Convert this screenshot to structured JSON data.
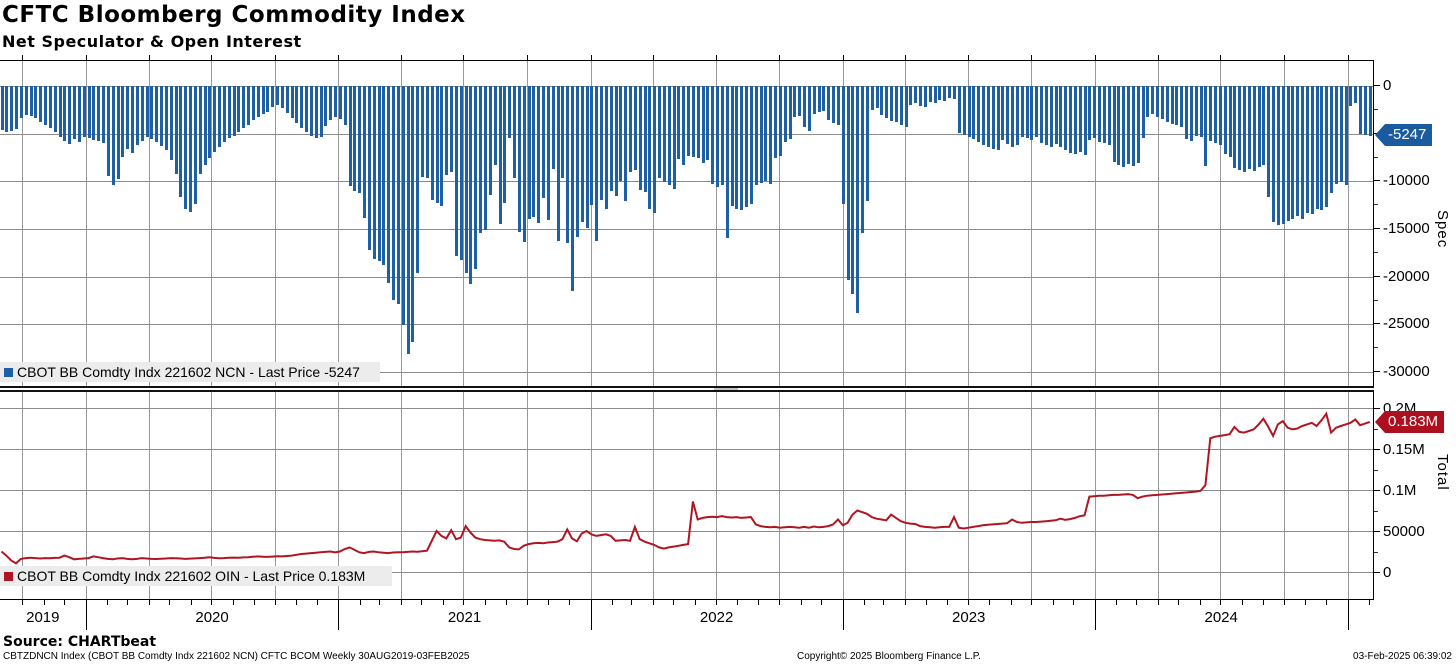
{
  "header": {
    "title": "CFTC Bloomberg Commodity Index",
    "subtitle": "Net Speculator & Open Interest"
  },
  "top_panel": {
    "legend_label": "CBOT BB Comdty Indx 221602 NCN - Last Price -5247",
    "badge_text": "-5247",
    "axis_label": "Spec",
    "accent_color": "#1d60a5",
    "badge_color": "#1a5a9e"
  },
  "bottom_panel": {
    "legend_label": "CBOT BB Comdty Indx 221602 OIN - Last Price 0.183M",
    "badge_text": "0.183M",
    "axis_label": "Total",
    "accent_color": "#b01622",
    "badge_color": "#ae0f1e"
  },
  "footer": {
    "source": "Source: CHARTbeat",
    "info": "CBTZDNCN Index (CBOT BB Comdty Indx 221602 NCN) CFTC BCOM  Weekly 30AUG2019-03FEB2025",
    "copyright": "Copyright© 2025 Bloomberg Finance L.P.",
    "timestamp": "03-Feb-2025 06:39:02"
  },
  "chart_data": [
    {
      "type": "bar",
      "name": "CBOT BB Comdty Indx 221602 NCN",
      "panel_label": "Spec",
      "color": "#1d60a5",
      "frequency": "weekly",
      "x_start": "2019-08-30",
      "x_end": "2025-02-03",
      "last_price": -5247,
      "ylim": [
        -31500,
        2600
      ],
      "y_ticks": [
        0,
        -5000,
        -10000,
        -15000,
        -20000,
        -25000,
        -30000
      ],
      "y_tick_labels": [
        "0",
        "-5000",
        "-10000",
        "-15000",
        "-20000",
        "-25000",
        "-30000"
      ],
      "y_minor_step": 2500,
      "grid": true,
      "values": [
        -4600,
        -4800,
        -4700,
        -4500,
        -3400,
        -3000,
        -3100,
        -3400,
        -3800,
        -4100,
        -4400,
        -4800,
        -5300,
        -5800,
        -6100,
        -5600,
        -5900,
        -5400,
        -5500,
        -5700,
        -5800,
        -6000,
        -9400,
        -10400,
        -9800,
        -7400,
        -6600,
        -7000,
        -6200,
        -5800,
        -5400,
        -5600,
        -5900,
        -6300,
        -6700,
        -7800,
        -9200,
        -11600,
        -12900,
        -13200,
        -12400,
        -9200,
        -8300,
        -7600,
        -6900,
        -6400,
        -5900,
        -5500,
        -5200,
        -4800,
        -4400,
        -4100,
        -3600,
        -3200,
        -2900,
        -2700,
        -2200,
        -2000,
        -2300,
        -2800,
        -3400,
        -3900,
        -4400,
        -4800,
        -5200,
        -5500,
        -5300,
        -4200,
        -3600,
        -3300,
        -3500,
        -4100,
        -10500,
        -11000,
        -11200,
        -13800,
        -17200,
        -18100,
        -18400,
        -18800,
        -20700,
        -22400,
        -22900,
        -25100,
        -28100,
        -26900,
        -19600,
        -9500,
        -9700,
        -12000,
        -12300,
        -12600,
        -9300,
        -9000,
        -17800,
        -18300,
        -19600,
        -20800,
        -19200,
        -15400,
        -15100,
        -11400,
        -8300,
        -14500,
        -12300,
        -5500,
        -9700,
        -15300,
        -16400,
        -14000,
        -13700,
        -14400,
        -11800,
        -14100,
        -8700,
        -16300,
        -9700,
        -16500,
        -21500,
        -15800,
        -14300,
        -14900,
        -12500,
        -16300,
        -12000,
        -12900,
        -11000,
        -11500,
        -10000,
        -12100,
        -9000,
        -8800,
        -10900,
        -11100,
        -12900,
        -13300,
        -9600,
        -10100,
        -10400,
        -10800,
        -7700,
        -8300,
        -7300,
        -7400,
        -7600,
        -8100,
        -7800,
        -10300,
        -10600,
        -10400,
        -15900,
        -12600,
        -12900,
        -13000,
        -12700,
        -12400,
        -10400,
        -10200,
        -10000,
        -10300,
        -7600,
        -7300,
        -5900,
        -5600,
        -3300,
        -3100,
        -4300,
        -4700,
        -2900,
        -2700,
        -2600,
        -3600,
        -3900,
        -4100,
        -12400,
        -20300,
        -21800,
        -23800,
        -15400,
        -12100,
        -2500,
        -2300,
        -3000,
        -3400,
        -3700,
        -3800,
        -4100,
        -4300,
        -2000,
        -1800,
        -2100,
        -2200,
        -1700,
        -1800,
        -1500,
        -1600,
        -1300,
        -1400,
        -4900,
        -5100,
        -5300,
        -5600,
        -5900,
        -6200,
        -6400,
        -6600,
        -6700,
        -5700,
        -6100,
        -6400,
        -6200,
        -5300,
        -5500,
        -5700,
        -5400,
        -6000,
        -6200,
        -6400,
        -6100,
        -6400,
        -6700,
        -7000,
        -7100,
        -6900,
        -7200,
        -5700,
        -5500,
        -5900,
        -6000,
        -6200,
        -8000,
        -8300,
        -8500,
        -8200,
        -8400,
        -8100,
        -5500,
        -3200,
        -2900,
        -3300,
        -3500,
        -3800,
        -4000,
        -4100,
        -4300,
        -5600,
        -5800,
        -5200,
        -5400,
        -8400,
        -5800,
        -6000,
        -6200,
        -7100,
        -7400,
        -8600,
        -8800,
        -9000,
        -8700,
        -8900,
        -8500,
        -8300,
        -11600,
        -14300,
        -14600,
        -14500,
        -14200,
        -14000,
        -13600,
        -13900,
        -13300,
        -13400,
        -12900,
        -13000,
        -12700,
        -11200,
        -10300,
        -10100,
        -10400,
        -2100,
        -1800,
        -5000,
        -5100,
        -5247
      ]
    },
    {
      "type": "line",
      "name": "CBOT BB Comdty Indx 221602 OIN",
      "panel_label": "Total",
      "color": "#b01622",
      "frequency": "weekly",
      "x_start": "2019-08-30",
      "x_end": "2025-02-03",
      "last_price": 183000,
      "last_price_label": "0.183M",
      "ylim": [
        -34000,
        220000
      ],
      "y_ticks": [
        200000,
        150000,
        100000,
        50000,
        0
      ],
      "y_tick_labels": [
        "0.2M",
        "0.15M",
        "0.1M",
        "50000",
        "0"
      ],
      "y_minor_step": 25000,
      "grid": true,
      "values": [
        25000,
        20000,
        14000,
        10500,
        16000,
        17000,
        17500,
        17000,
        16500,
        17000,
        16800,
        17200,
        17500,
        20000,
        18000,
        15500,
        16000,
        16500,
        17000,
        19000,
        18000,
        17000,
        16000,
        15500,
        16500,
        17000,
        16000,
        15500,
        16000,
        17000,
        16500,
        16000,
        15800,
        16200,
        16500,
        17000,
        16800,
        16500,
        16000,
        16300,
        16600,
        17000,
        17500,
        18000,
        17200,
        16800,
        17000,
        17300,
        17600,
        17400,
        17800,
        18000,
        18500,
        19000,
        18700,
        18400,
        18800,
        19200,
        19000,
        19500,
        20000,
        21000,
        22000,
        22500,
        23000,
        23500,
        24000,
        24500,
        25000,
        24000,
        25000,
        28000,
        30000,
        27000,
        24000,
        23000,
        24500,
        25000,
        24000,
        23500,
        23000,
        23800,
        24200,
        24000,
        24500,
        25000,
        24800,
        25200,
        26000,
        38000,
        50000,
        44000,
        41000,
        51000,
        40000,
        42000,
        56000,
        48000,
        42000,
        40000,
        39000,
        38500,
        38000,
        38500,
        37000,
        30000,
        28000,
        27500,
        32000,
        34000,
        35000,
        35500,
        35000,
        36000,
        36500,
        37000,
        40000,
        52000,
        41000,
        37500,
        47000,
        50000,
        46000,
        44000,
        45000,
        46000,
        44000,
        38000,
        38500,
        39000,
        38000,
        55000,
        40000,
        37000,
        35000,
        33000,
        30000,
        28500,
        30000,
        31000,
        32000,
        33000,
        34000,
        86000,
        64000,
        66000,
        67000,
        67500,
        67000,
        68000,
        67000,
        66500,
        67000,
        66000,
        66500,
        67000,
        58000,
        56000,
        55000,
        54500,
        55000,
        54000,
        54500,
        55000,
        54500,
        54000,
        55000,
        54000,
        55500,
        54500,
        55000,
        56000,
        58000,
        64000,
        57000,
        60000,
        70000,
        75000,
        73000,
        71000,
        67000,
        65000,
        64000,
        63000,
        70000,
        66000,
        62000,
        60000,
        59000,
        58500,
        56000,
        55000,
        54500,
        54000,
        54500,
        55000,
        55000,
        67000,
        54000,
        53000,
        54000,
        55000,
        56000,
        57000,
        57500,
        58000,
        58500,
        59000,
        59500,
        64000,
        61000,
        60000,
        60500,
        61000,
        61000,
        61500,
        62000,
        62500,
        63000,
        65000,
        63500,
        64500,
        66000,
        68000,
        69000,
        92000,
        92500,
        93000,
        93000,
        93500,
        94000,
        94000,
        94500,
        95000,
        94000,
        90000,
        92000,
        93000,
        93500,
        94000,
        94500,
        95000,
        95500,
        96000,
        96500,
        97000,
        97500,
        98000,
        99000,
        106000,
        163000,
        165000,
        166000,
        167000,
        168000,
        177000,
        171000,
        170000,
        172000,
        174000,
        180000,
        187000,
        177000,
        166000,
        180000,
        184000,
        176000,
        174000,
        175000,
        178000,
        180000,
        182000,
        178000,
        185000,
        193000,
        170000,
        176000,
        178000,
        180000,
        182000,
        186000,
        179000,
        181000,
        183000
      ]
    }
  ],
  "xaxis": {
    "years": [
      "2019",
      "2020",
      "2021",
      "2022",
      "2023",
      "2024"
    ],
    "range_label": "30AUG2019-03FEB2025"
  }
}
